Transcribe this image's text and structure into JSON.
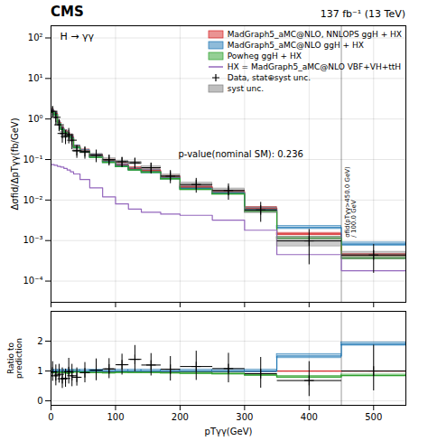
{
  "chart_data": [
    {
      "type": "step",
      "title": "CMS",
      "subtitle": "137 fb⁻¹ (13 TeV)",
      "ylabel": "Δσfid/ΔpTγγ(fb/GeV)",
      "log": "y",
      "grid": true,
      "legend": "upper right",
      "tick_labels": "y",
      "bins": [
        0,
        5,
        10,
        15,
        20,
        25,
        30,
        35,
        45,
        60,
        80,
        100,
        120,
        140,
        170,
        200,
        250,
        300,
        350,
        450,
        550
      ],
      "xlim": [
        0,
        550
      ],
      "xticks": [
        0,
        100,
        200,
        300,
        400,
        500
      ],
      "ylim": [
        3e-05,
        200
      ],
      "yticks": [
        {
          "value": 0.0001,
          "label": "10⁻⁴"
        },
        {
          "value": 0.001,
          "label": "10⁻³"
        },
        {
          "value": 0.01,
          "label": "10⁻²"
        },
        {
          "value": 0.1,
          "label": "10⁻¹"
        },
        {
          "value": 1,
          "label": "10⁰"
        },
        {
          "value": 10,
          "label": "10¹"
        },
        {
          "value": 100,
          "label": "10²"
        }
      ],
      "series": [
        {
          "name": "MadGraph5_aMC@NLO, NNLOPS ggH + HX",
          "color": "#d62728",
          "err_factor": 1.07,
          "values": [
            1.6,
            1.35,
            0.82,
            0.6,
            0.5,
            0.42,
            0.36,
            0.21,
            0.165,
            0.125,
            0.093,
            0.073,
            0.06,
            0.053,
            0.037,
            0.021,
            0.016,
            0.0063,
            0.00145,
            0.00044
          ]
        },
        {
          "name": "MadGraph5_aMC@NLO ggH + HX",
          "color": "#1f77b4",
          "err_factor": 1.09,
          "values": [
            1.55,
            1.3,
            0.79,
            0.58,
            0.48,
            0.4,
            0.345,
            0.205,
            0.16,
            0.12,
            0.089,
            0.07,
            0.057,
            0.05,
            0.035,
            0.0195,
            0.015,
            0.0058,
            0.0021,
            0.00082
          ]
        },
        {
          "name": "Powheg ggH + HX",
          "color": "#2ca02c",
          "err_factor": 1.06,
          "values": [
            1.48,
            1.26,
            0.77,
            0.56,
            0.465,
            0.385,
            0.335,
            0.2,
            0.155,
            0.115,
            0.086,
            0.068,
            0.056,
            0.049,
            0.034,
            0.0185,
            0.0143,
            0.0053,
            0.00115,
            0.00037
          ]
        },
        {
          "name": "HX = MadGraph5_aMC@NLO VBF+VH+ttH",
          "color": "#9467bd",
          "values": [
            0.075,
            0.072,
            0.068,
            0.065,
            0.06,
            0.055,
            0.05,
            0.044,
            0.032,
            0.02,
            0.012,
            0.008,
            0.006,
            0.005,
            0.0045,
            0.0042,
            0.0032,
            0.0018,
            0.00045,
            0.00018
          ]
        },
        {
          "name": "Data, stat⊕syst unc.",
          "type": "errorbar",
          "marker": "plus",
          "color": "black",
          "x": [
            2.5,
            7.5,
            12.5,
            17.5,
            22.5,
            27.5,
            32.5,
            40,
            52.5,
            70,
            90,
            110,
            130,
            155,
            185,
            225,
            275,
            325,
            400,
            500
          ],
          "values": [
            1.55,
            1.1,
            0.72,
            0.44,
            0.37,
            0.41,
            0.3,
            0.165,
            0.155,
            0.128,
            0.099,
            0.088,
            0.083,
            0.063,
            0.039,
            0.0242,
            0.0172,
            0.0057,
            0.00098,
            0.00044
          ],
          "xerr_lo": [
            2.5,
            2.5,
            2.5,
            2.5,
            2.5,
            2.5,
            2.5,
            5,
            7.5,
            10,
            10,
            10,
            10,
            15,
            15,
            25,
            25,
            25,
            50,
            50
          ],
          "xerr_hi": [
            2.5,
            2.5,
            2.5,
            2.5,
            2.5,
            2.5,
            2.5,
            5,
            7.5,
            10,
            10,
            10,
            10,
            15,
            15,
            25,
            25,
            25,
            50,
            50
          ],
          "yerr_lo": [
            0.45,
            0.4,
            0.22,
            0.18,
            0.13,
            0.16,
            0.12,
            0.055,
            0.05,
            0.042,
            0.028,
            0.023,
            0.023,
            0.018,
            0.013,
            0.009,
            0.007,
            0.0028,
            0.00072,
            0.00028
          ],
          "yerr_hi": [
            0.55,
            0.48,
            0.28,
            0.22,
            0.16,
            0.19,
            0.14,
            0.065,
            0.056,
            0.048,
            0.033,
            0.027,
            0.028,
            0.021,
            0.016,
            0.011,
            0.0085,
            0.0033,
            0.00095,
            0.00038
          ]
        },
        {
          "name": "syst unc.",
          "type": "band",
          "color": "gray",
          "values": [
            1.55,
            1.1,
            0.72,
            0.44,
            0.37,
            0.41,
            0.3,
            0.165,
            0.155,
            0.128,
            0.099,
            0.088,
            0.083,
            0.063,
            0.039,
            0.0242,
            0.0172,
            0.0057,
            0.00098,
            0.00044
          ],
          "err_lo": [
            0.08,
            0.07,
            0.045,
            0.033,
            0.028,
            0.032,
            0.025,
            0.013,
            0.012,
            0.01,
            0.008,
            0.006,
            0.006,
            0.005,
            0.0035,
            0.0026,
            0.0021,
            0.0009,
            0.00026,
            9e-05
          ],
          "err_hi": [
            0.08,
            0.07,
            0.045,
            0.033,
            0.028,
            0.032,
            0.025,
            0.013,
            0.012,
            0.01,
            0.008,
            0.006,
            0.006,
            0.005,
            0.0035,
            0.0026,
            0.0021,
            0.0009,
            0.00026,
            9e-05
          ]
        }
      ],
      "annotations": [
        {
          "text": "H → γγ"
        },
        {
          "text": "p-value(nominal SM): 0.236"
        },
        {
          "text": "σfid(pTγγ>450.0 GeV)\n/ 100.0 GeV",
          "x": 455,
          "y": 0.0012
        }
      ],
      "reference_lines": [
        {
          "x": 450
        }
      ]
    },
    {
      "type": "step",
      "xlabel": "pTγγ(GeV)",
      "ylabel": "Ratio to\nprediction",
      "grid": true,
      "bins": [
        0,
        5,
        10,
        15,
        20,
        25,
        30,
        35,
        45,
        60,
        80,
        100,
        120,
        140,
        170,
        200,
        250,
        300,
        350,
        450,
        550
      ],
      "xlim": [
        0,
        550
      ],
      "xticks": [
        0,
        100,
        200,
        300,
        400,
        500
      ],
      "ylim": [
        -0.15,
        3.0
      ],
      "yticks": [
        0,
        1,
        2
      ],
      "series": [
        {
          "color": "#d62728",
          "values": [
            1.0,
            1.0,
            1.0,
            1.0,
            1.0,
            1.0,
            1.0,
            1.0,
            1.0,
            1.0,
            1.0,
            1.0,
            1.0,
            1.0,
            1.0,
            1.0,
            1.0,
            1.0,
            1.0,
            1.0
          ]
        },
        {
          "color": "#1f77b4",
          "values": [
            1.0,
            1.0,
            1.0,
            1.0,
            1.0,
            1.0,
            1.0,
            1.0,
            1.0,
            1.0,
            1.0,
            1.0,
            1.0,
            1.0,
            1.0,
            1.0,
            1.0,
            1.0,
            1.5,
            1.9
          ],
          "band_lo": [
            0.96,
            0.96,
            0.96,
            0.96,
            0.96,
            0.96,
            0.96,
            0.96,
            0.96,
            0.96,
            0.96,
            0.96,
            0.96,
            0.96,
            0.96,
            0.96,
            0.96,
            0.96,
            1.43,
            1.85
          ],
          "band_hi": [
            1.04,
            1.04,
            1.04,
            1.04,
            1.04,
            1.04,
            1.04,
            1.04,
            1.04,
            1.04,
            1.04,
            1.04,
            1.04,
            1.04,
            1.04,
            1.04,
            1.04,
            1.04,
            1.57,
            1.95
          ]
        },
        {
          "color": "#2ca02c",
          "values": [
            0.95,
            0.95,
            0.96,
            0.95,
            0.94,
            0.93,
            0.95,
            0.97,
            0.96,
            0.95,
            0.94,
            0.96,
            0.95,
            0.95,
            0.94,
            0.93,
            0.91,
            0.87,
            0.8,
            0.85
          ],
          "band_lo": [
            0.92,
            0.92,
            0.93,
            0.92,
            0.91,
            0.9,
            0.92,
            0.94,
            0.93,
            0.92,
            0.91,
            0.93,
            0.92,
            0.92,
            0.91,
            0.9,
            0.88,
            0.84,
            0.77,
            0.82
          ],
          "band_hi": [
            0.98,
            0.98,
            0.99,
            0.98,
            0.97,
            0.96,
            0.98,
            1.0,
            0.99,
            0.98,
            0.97,
            0.99,
            0.98,
            0.98,
            0.97,
            0.96,
            0.94,
            0.9,
            0.83,
            0.88
          ]
        },
        {
          "type": "errorbar",
          "marker": "plus",
          "color": "black",
          "x": [
            2.5,
            7.5,
            12.5,
            17.5,
            22.5,
            27.5,
            32.5,
            40,
            52.5,
            70,
            90,
            110,
            130,
            155,
            185,
            225,
            275,
            325,
            400,
            500
          ],
          "values": [
            0.97,
            0.84,
            0.89,
            0.74,
            0.75,
            0.98,
            0.84,
            0.79,
            0.94,
            1.03,
            1.07,
            1.21,
            1.39,
            1.2,
            1.06,
            1.15,
            1.08,
            0.91,
            0.68,
            1.0
          ],
          "xerr_lo": [
            2.5,
            2.5,
            2.5,
            2.5,
            2.5,
            2.5,
            2.5,
            5,
            7.5,
            10,
            10,
            10,
            10,
            15,
            15,
            25,
            25,
            25,
            50,
            50
          ],
          "xerr_hi": [
            2.5,
            2.5,
            2.5,
            2.5,
            2.5,
            2.5,
            2.5,
            5,
            7.5,
            10,
            10,
            10,
            10,
            15,
            15,
            25,
            25,
            25,
            50,
            50
          ],
          "yerr_lo": [
            0.3,
            0.32,
            0.28,
            0.31,
            0.28,
            0.4,
            0.35,
            0.28,
            0.32,
            0.34,
            0.31,
            0.33,
            0.4,
            0.35,
            0.38,
            0.45,
            0.46,
            0.47,
            0.52,
            0.65
          ],
          "yerr_hi": [
            0.36,
            0.38,
            0.35,
            0.38,
            0.33,
            0.46,
            0.4,
            0.33,
            0.36,
            0.39,
            0.36,
            0.37,
            0.48,
            0.4,
            0.44,
            0.53,
            0.53,
            0.56,
            0.65,
            0.88
          ]
        }
      ],
      "reference_lines": [
        {
          "x": 450
        },
        {
          "y": 1
        }
      ]
    }
  ]
}
